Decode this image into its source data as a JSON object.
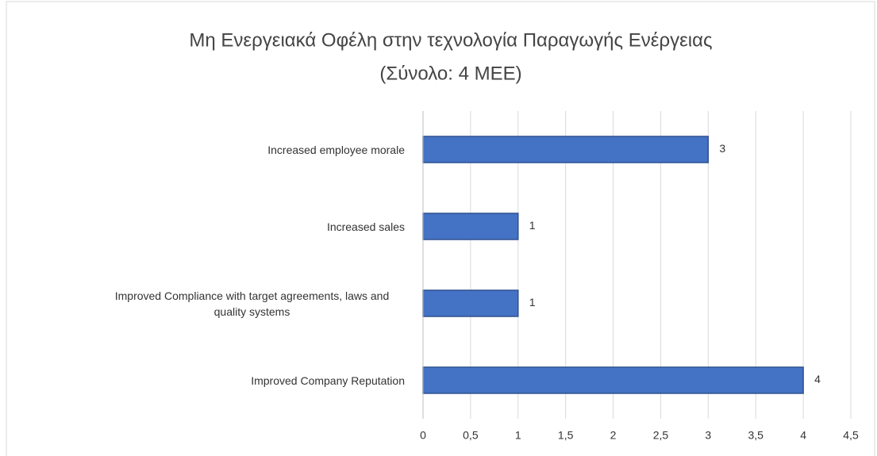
{
  "chart_data": {
    "type": "bar",
    "orientation": "horizontal",
    "title": "Μη Ενεργειακά Οφέλη στην τεχνολογία Παραγωγής Ενέργειας",
    "subtitle": "(Σύνολο: 4 ΜΕΕ)",
    "categories": [
      "Increased employee morale",
      "Increased sales",
      "Improved Compliance with target agreements, laws and quality systems",
      "Improved Company Reputation"
    ],
    "values": [
      3,
      1,
      1,
      4
    ],
    "color": "#4472c4",
    "xlim": [
      0,
      4.5
    ],
    "xticks": [
      0,
      {
        "value": 0.5,
        "label": "0,5"
      },
      1,
      {
        "value": 1.5,
        "label": "1,5"
      },
      2,
      {
        "value": 2.5,
        "label": "2,5"
      },
      3,
      {
        "value": 3.5,
        "label": "3,5"
      },
      4,
      {
        "value": 4.5,
        "label": "4,5"
      }
    ],
    "grid": true
  }
}
